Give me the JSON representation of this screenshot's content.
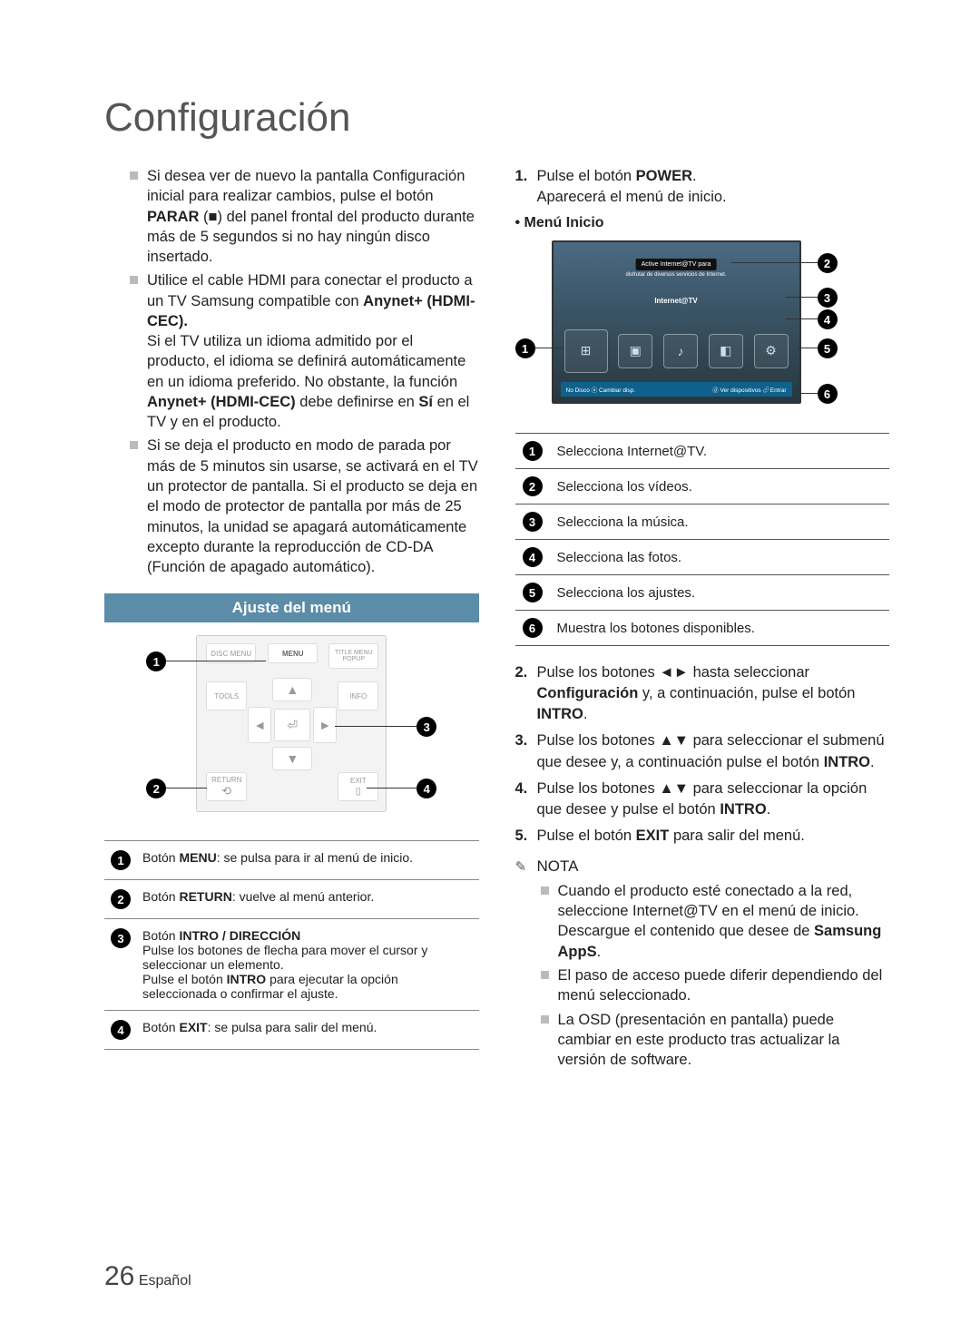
{
  "page": {
    "title": "Configuración",
    "number": "26",
    "lang": "Español"
  },
  "left": {
    "bullets": [
      {
        "html": "Si desea ver de nuevo la pantalla Configuración inicial para realizar cambios, pulse el botón <b>PARAR</b> (■) del panel frontal del producto durante más de 5 segundos si no hay ningún disco insertado."
      },
      {
        "html": "Utilice el cable HDMI para conectar el producto a un TV Samsung compatible con <b>Anynet+ (HDMI-CEC).</b><br>Si el TV utiliza un idioma admitido por el producto, el idioma se definirá automáticamente en un idioma preferido. No obstante, la función <b>Anynet+ (HDMI-CEC)</b> debe definirse en <b>Sí</b> en el TV y en el producto."
      },
      {
        "html": "Si se deja el producto en modo de parada por más de 5 minutos sin usarse, se activará en el TV un protector de pantalla. Si el producto se deja en el modo de protector de pantalla por más de 25 minutos, la unidad se apagará automáticamente excepto durante la reproducción de CD-DA (Función de apagado automático)."
      }
    ],
    "section_header": "Ajuste del menú",
    "remote_labels": {
      "disc_menu": "DISC MENU",
      "menu": "MENU",
      "title_menu": "TITLE MENU",
      "popup": "POPUP",
      "tools": "TOOLS",
      "info": "INFO",
      "return": "RETURN",
      "exit": "EXIT"
    },
    "button_table": [
      {
        "n": "1",
        "html": "Botón <b>MENU</b>: se pulsa para ir al menú de inicio."
      },
      {
        "n": "2",
        "html": "Botón <b>RETURN</b>: vuelve al menú anterior."
      },
      {
        "n": "3",
        "html": "Botón <b>INTRO / DIRECCIÓN</b><br>Pulse los botones de flecha para mover el cursor y seleccionar un elemento.<br>Pulse el botón <b>INTRO</b> para ejecutar la opción seleccionada o confirmar el ajuste."
      },
      {
        "n": "4",
        "html": "Botón <b>EXIT</b>: se pulsa para salir del menú."
      }
    ]
  },
  "right": {
    "steps_top": [
      {
        "n": "1.",
        "html": "Pulse el botón <b>POWER</b>.<br>Aparecerá el menú de inicio."
      }
    ],
    "menu_inicio_label": "Menú Inicio",
    "tv": {
      "banner": "Active Internet@TV para",
      "subbanner": "disfrutar de diversos servicios de Internet.",
      "label": "Internet@TV",
      "bottom_left": "No Disco   ⓐ Cambiar disp.",
      "bottom_right": "ⓓ Ver dispositivos  ⏎ Entrar"
    },
    "sel_table": [
      {
        "n": "1",
        "t": "Selecciona Internet@TV."
      },
      {
        "n": "2",
        "t": "Selecciona los vídeos."
      },
      {
        "n": "3",
        "t": "Selecciona la música."
      },
      {
        "n": "4",
        "t": "Selecciona las fotos."
      },
      {
        "n": "5",
        "t": "Selecciona los ajustes."
      },
      {
        "n": "6",
        "t": "Muestra los botones disponibles."
      }
    ],
    "steps_bottom": [
      {
        "n": "2.",
        "html": "Pulse los botones ◄► hasta seleccionar <b>Configuración</b> y, a continuación, pulse el botón <b>INTRO</b>."
      },
      {
        "n": "3.",
        "html": "Pulse los botones ▲▼ para seleccionar el submenú que desee y, a continuación pulse el botón <b>INTRO</b>."
      },
      {
        "n": "4.",
        "html": "Pulse los botones ▲▼ para seleccionar la opción que desee y pulse el botón <b>INTRO</b>."
      },
      {
        "n": "5.",
        "html": "Pulse el botón <b>EXIT</b> para salir del menú."
      }
    ],
    "nota_label": "NOTA",
    "nota_bullets": [
      {
        "html": "Cuando el producto esté conectado a la red, seleccione Internet@TV en el menú de inicio. Descargue el contenido que desee de <b>Samsung AppS</b>."
      },
      {
        "html": "El paso de acceso puede diferir dependiendo del menú seleccionado."
      },
      {
        "html": "La OSD (presentación en pantalla) puede cambiar en este producto tras actualizar la versión de software."
      }
    ]
  },
  "colors": {
    "header_bg": "#5b8ca8",
    "text": "#222222",
    "tv_bar": "#0e618c"
  }
}
